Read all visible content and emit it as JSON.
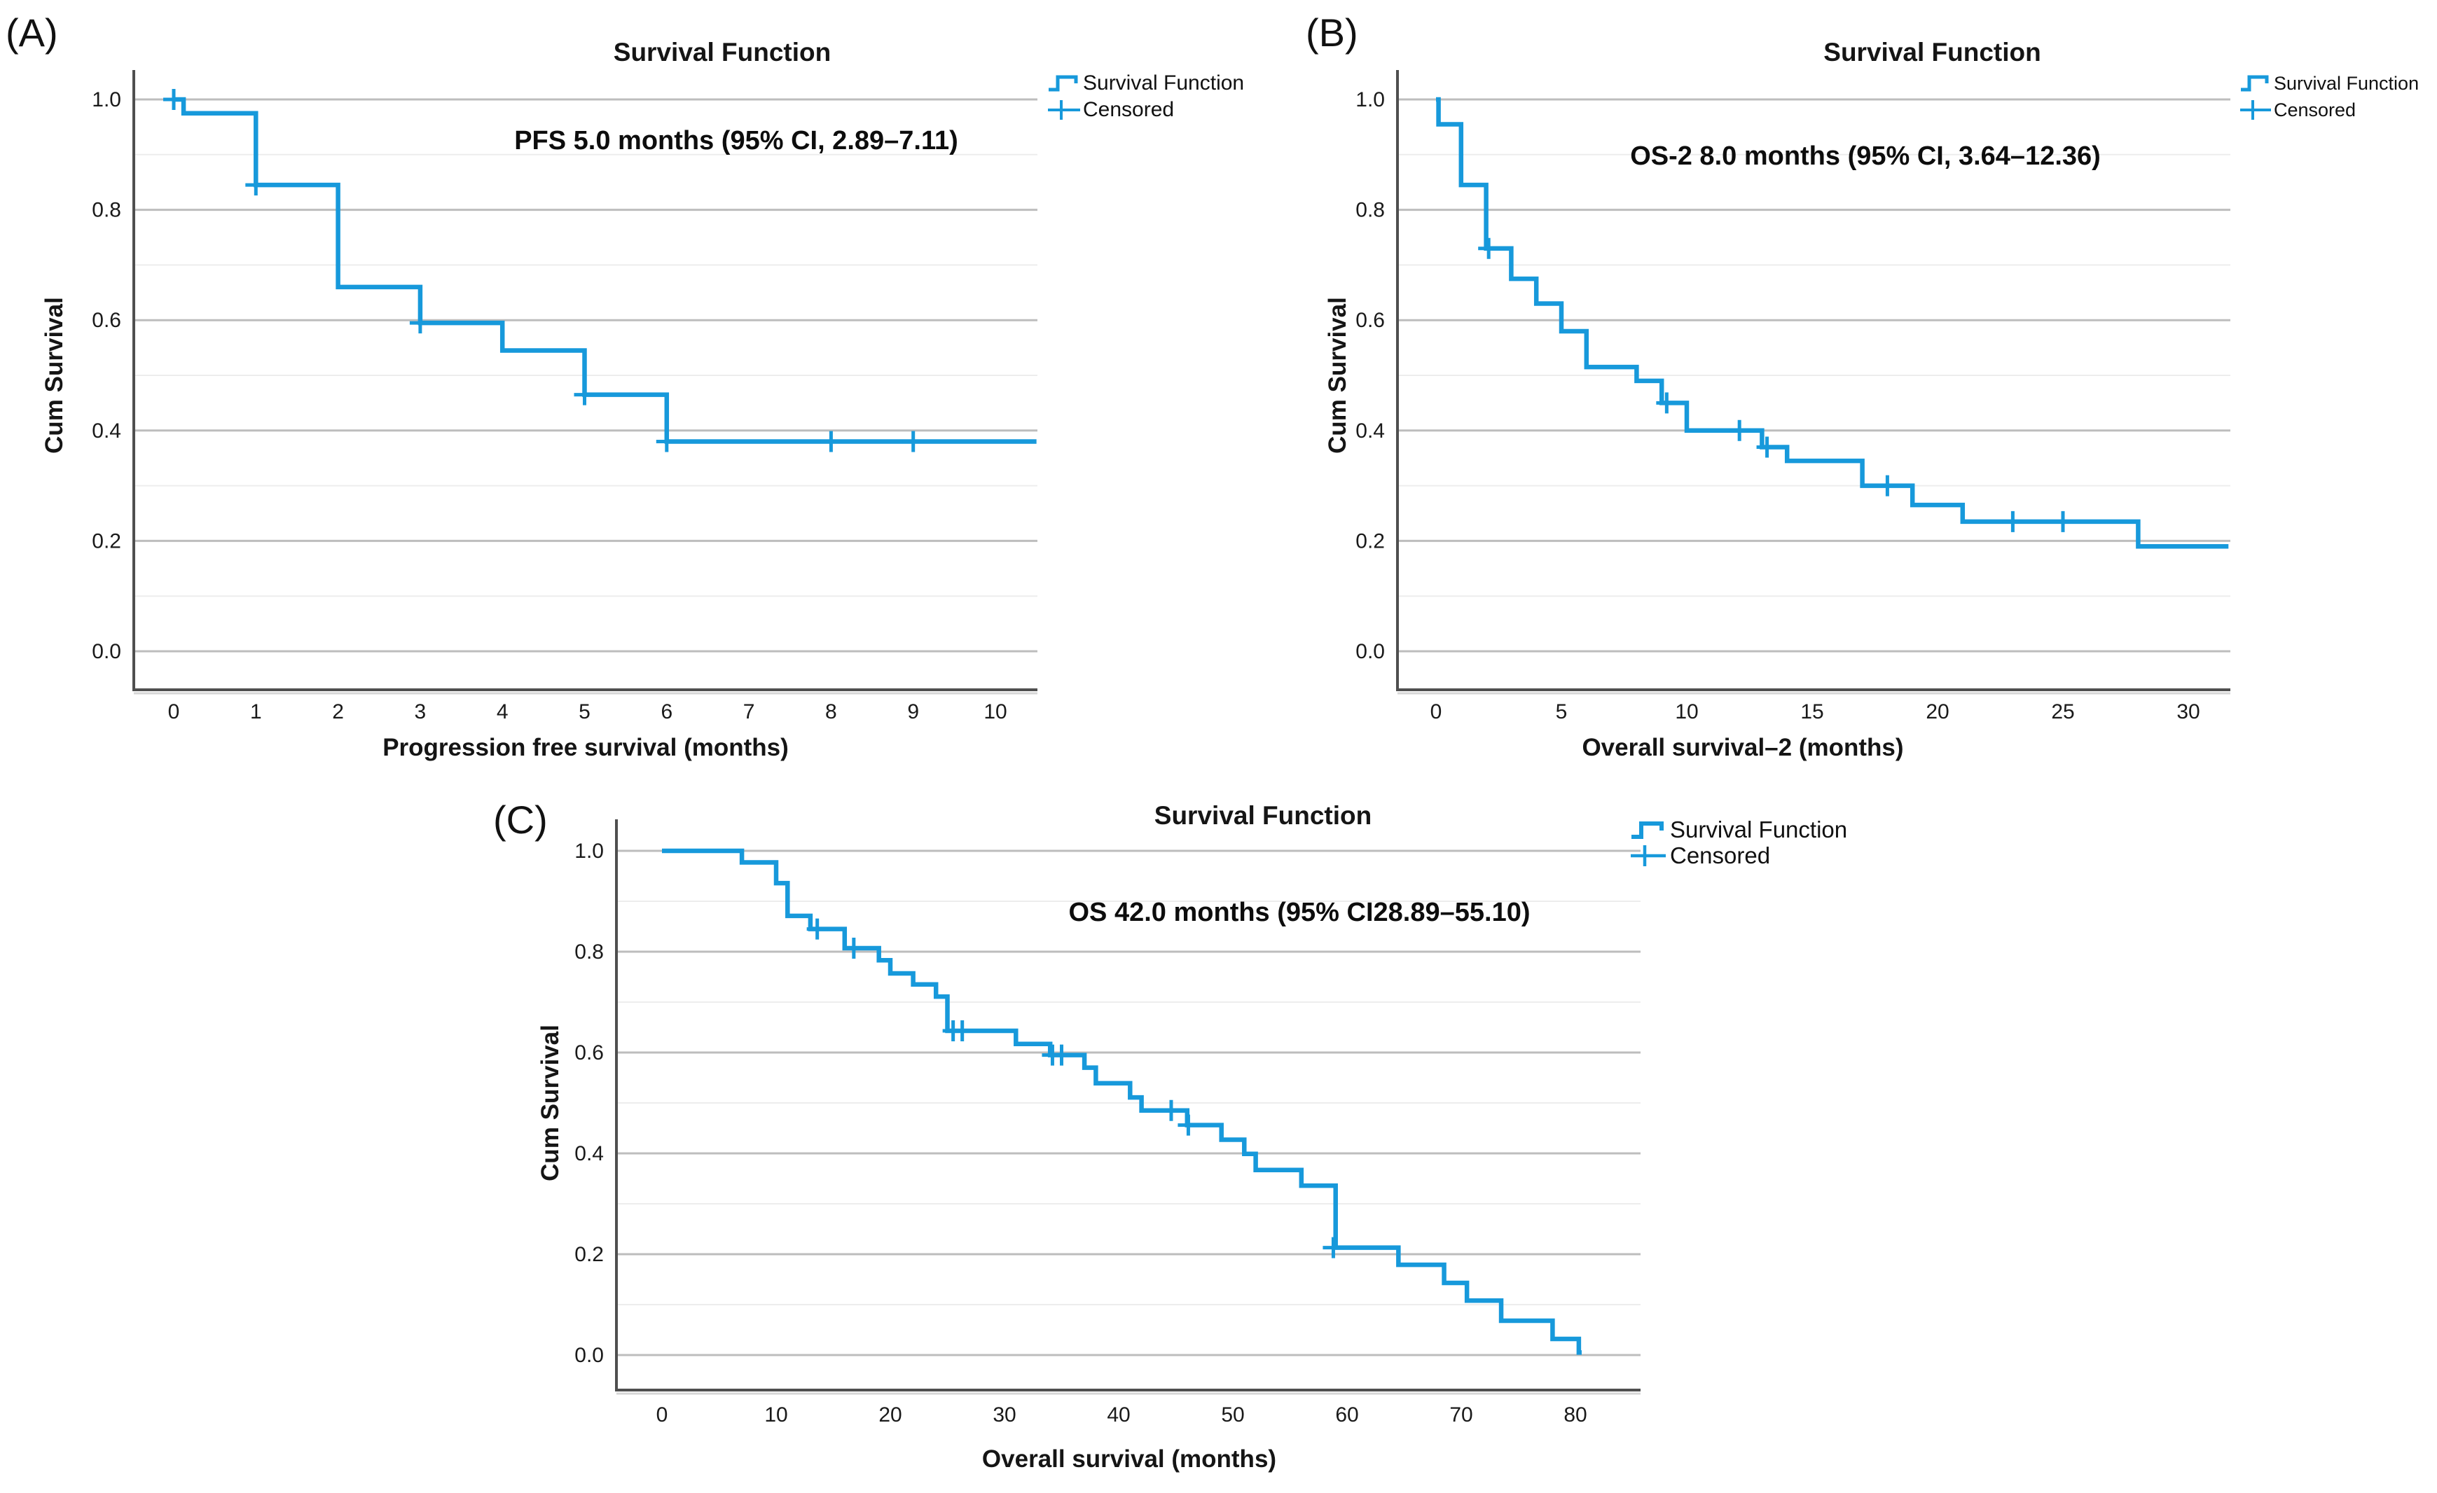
{
  "figure": {
    "background": "#ffffff",
    "panel_letters": [
      "(A)",
      "(B)",
      "(C)"
    ],
    "colors": {
      "line": "#1799db",
      "grid_major": "#bdbdbd",
      "grid_minor": "#ededed",
      "spine": "#4f4f4f",
      "spine_shadow": "#d6d6d6",
      "tick_text": "#1a1a1a"
    }
  },
  "chart_data": [
    {
      "type": "line",
      "subtype": "kaplan_meier_step",
      "panel": "A",
      "title": "Survival Function",
      "annotation": "PFS 5.0 months (95% CI, 2.89–7.11)",
      "xlabel": "Progression free survival (months)",
      "ylabel": "Cum Survival",
      "legend": [
        "Survival Function",
        "Censored"
      ],
      "legend_position": "top-right",
      "grid": "horizontal, major every 0.2, minor every 0.1",
      "xlim": [
        -0.5,
        10.5
      ],
      "ylim": [
        -0.05,
        1.05
      ],
      "xticks": [
        0,
        1,
        2,
        3,
        4,
        5,
        6,
        7,
        8,
        9,
        10
      ],
      "yticks": [
        0.0,
        0.2,
        0.4,
        0.6,
        0.8,
        1.0
      ],
      "median_months": 5.0,
      "ci95": [
        2.89,
        7.11
      ],
      "steps": [
        [
          0,
          1.0
        ],
        [
          0.12,
          0.975
        ],
        [
          1,
          0.845
        ],
        [
          2,
          0.66
        ],
        [
          3,
          0.595
        ],
        [
          4,
          0.545
        ],
        [
          5,
          0.465
        ],
        [
          6,
          0.38
        ]
      ],
      "curve_end": 10.5,
      "censored": [
        [
          0,
          1.0
        ],
        [
          1,
          0.845
        ],
        [
          3,
          0.595
        ],
        [
          5,
          0.465
        ],
        [
          6,
          0.38
        ],
        [
          8,
          0.38
        ],
        [
          9,
          0.38
        ]
      ]
    },
    {
      "type": "line",
      "subtype": "kaplan_meier_step",
      "panel": "B",
      "title": "Survival Function",
      "annotation": "OS-2 8.0 months (95% CI, 3.64–12.36)",
      "xlabel": "Overall survival–2 (months)",
      "ylabel": "Cum Survival",
      "legend": [
        "Survival Function",
        "Censored"
      ],
      "legend_position": "top-right",
      "grid": "horizontal, major every 0.2, minor every 0.1",
      "xlim": [
        -1.5,
        31.7
      ],
      "ylim": [
        -0.05,
        1.05
      ],
      "xticks": [
        0,
        5,
        10,
        15,
        20,
        25,
        30
      ],
      "yticks": [
        0.0,
        0.2,
        0.4,
        0.6,
        0.8,
        1.0
      ],
      "median_months": 8.0,
      "ci95": [
        3.64,
        12.36
      ],
      "steps": [
        [
          0,
          1.0
        ],
        [
          0.1,
          0.955
        ],
        [
          1,
          0.845
        ],
        [
          2,
          0.73
        ],
        [
          3,
          0.675
        ],
        [
          4,
          0.63
        ],
        [
          5,
          0.58
        ],
        [
          6,
          0.515
        ],
        [
          8,
          0.49
        ],
        [
          9,
          0.45
        ],
        [
          10,
          0.4
        ],
        [
          13,
          0.37
        ],
        [
          14,
          0.345
        ],
        [
          17,
          0.3
        ],
        [
          19,
          0.265
        ],
        [
          21,
          0.235
        ],
        [
          28,
          0.19
        ]
      ],
      "curve_end": 31.6,
      "censored": [
        [
          2.1,
          0.73
        ],
        [
          9.2,
          0.45
        ],
        [
          12.1,
          0.4
        ],
        [
          13.2,
          0.37
        ],
        [
          18,
          0.3
        ],
        [
          23,
          0.235
        ],
        [
          25,
          0.235
        ]
      ]
    },
    {
      "type": "line",
      "subtype": "kaplan_meier_step",
      "panel": "C",
      "title": "Survival Function",
      "annotation": "OS 42.0 months (95% CI28.89–55.10)",
      "xlabel": "Overall survival (months)",
      "ylabel": "Cum Survival",
      "legend": [
        "Survival Function",
        "Censored"
      ],
      "legend_position": "top-right",
      "grid": "horizontal, major every 0.2, minor every 0.1",
      "xlim": [
        -4,
        85
      ],
      "ylim": [
        -0.05,
        1.05
      ],
      "xticks": [
        0,
        10,
        20,
        30,
        40,
        50,
        60,
        70,
        80
      ],
      "yticks": [
        0.0,
        0.2,
        0.4,
        0.6,
        0.8,
        1.0
      ],
      "median_months": 42.0,
      "ci95": [
        28.89,
        55.1
      ],
      "steps": [
        [
          0,
          1.0
        ],
        [
          7,
          0.977
        ],
        [
          10,
          0.936
        ],
        [
          11,
          0.871
        ],
        [
          13,
          0.845
        ],
        [
          16,
          0.807
        ],
        [
          19,
          0.783
        ],
        [
          20,
          0.757
        ],
        [
          22,
          0.735
        ],
        [
          24,
          0.711
        ],
        [
          25,
          0.643
        ],
        [
          31,
          0.617
        ],
        [
          34,
          0.595
        ],
        [
          37,
          0.57
        ],
        [
          38,
          0.539
        ],
        [
          41,
          0.511
        ],
        [
          42,
          0.485
        ],
        [
          46,
          0.456
        ],
        [
          49,
          0.427
        ],
        [
          51,
          0.399
        ],
        [
          52,
          0.367
        ],
        [
          56,
          0.336
        ],
        [
          59,
          0.213
        ],
        [
          64.5,
          0.179
        ],
        [
          68.5,
          0.143
        ],
        [
          70.5,
          0.108
        ],
        [
          73.5,
          0.068
        ],
        [
          78,
          0.032
        ],
        [
          80.3,
          0.005
        ]
      ],
      "curve_end": 80.55,
      "censored": [
        [
          13.6,
          0.845
        ],
        [
          16.8,
          0.807
        ],
        [
          25.5,
          0.643
        ],
        [
          26.3,
          0.643
        ],
        [
          34.2,
          0.595
        ],
        [
          35,
          0.595
        ],
        [
          44.6,
          0.485
        ],
        [
          46.1,
          0.456
        ],
        [
          58.8,
          0.213
        ]
      ]
    }
  ]
}
